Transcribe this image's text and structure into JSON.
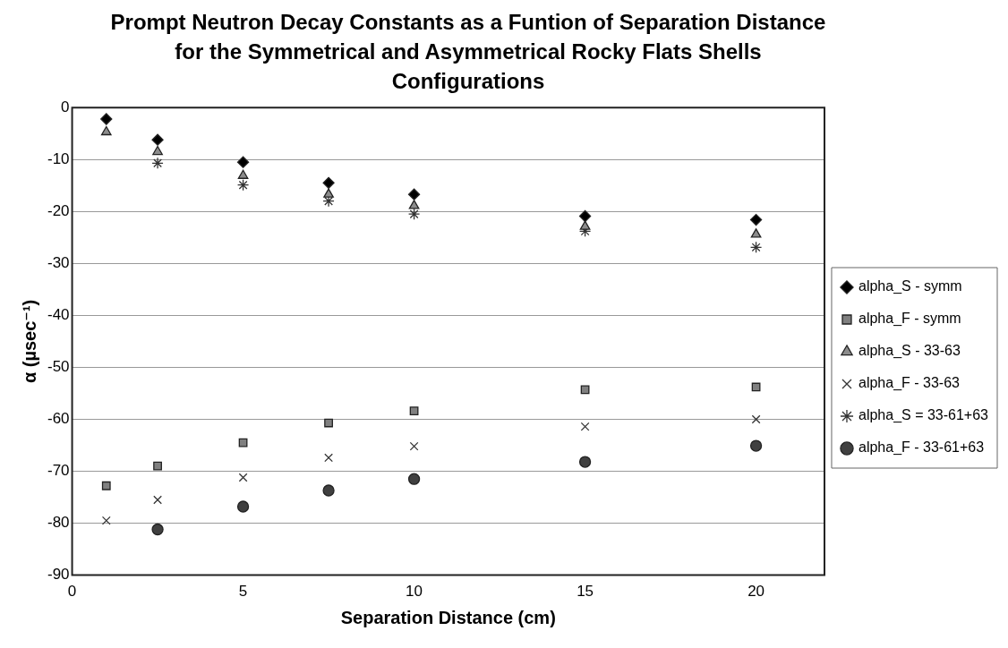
{
  "chart_data": {
    "type": "scatter",
    "title": "Prompt Neutron Decay Constants as a Funtion of Separation Distance for the Symmetrical and Asymmetrical Rocky Flats Shells Configurations",
    "xlabel": "Separation Distance (cm)",
    "ylabel": "α (µsec⁻¹)",
    "x": [
      1,
      2.5,
      5,
      7.5,
      10,
      15,
      20
    ],
    "series": [
      {
        "name": "alpha_S - symm",
        "color": "#000000",
        "marker": "diamond",
        "values": [
          -2.2,
          -6.2,
          -10.5,
          -14.5,
          -16.7,
          -20.9,
          -21.6
        ]
      },
      {
        "name": "alpha_F - symm",
        "color": "#808080",
        "marker": "square",
        "values": [
          -72.8,
          -69,
          -64.5,
          -60.7,
          -58.4,
          -54.3,
          -53.8
        ]
      },
      {
        "name": "alpha_S - 33-63",
        "color": "#8c8c8c",
        "marker": "triangle",
        "values": [
          -4.7,
          -8.5,
          -13.1,
          -16.7,
          -18.9,
          -22.9,
          -24.4
        ]
      },
      {
        "name": "alpha_F - 33-63",
        "color": "#333333",
        "marker": "cross",
        "values": [
          -79.5,
          -75.5,
          -71.2,
          -67.4,
          -65.2,
          -61.4,
          -60
        ]
      },
      {
        "name": "alpha_S = 33-61+63",
        "color": "#333333",
        "values": [
          null,
          -10.7,
          -14.9,
          -18,
          -20.5,
          -23.8,
          -26.9
        ]
      },
      {
        "name": "alpha_F - 33-61+63",
        "color": "#404040",
        "marker": "circle",
        "values": [
          null,
          -81.2,
          -76.8,
          -73.7,
          -71.5,
          -68.2,
          -65.1
        ]
      }
    ],
    "xlim": [
      0,
      22
    ],
    "xticks": [
      0,
      5,
      10,
      15,
      20
    ],
    "ylim": [
      -90,
      0
    ],
    "yticks": [
      -90,
      -80,
      -70,
      -60,
      -50,
      -40,
      -30,
      -20,
      -10,
      0
    ],
    "grid": "y",
    "legend": "right"
  }
}
